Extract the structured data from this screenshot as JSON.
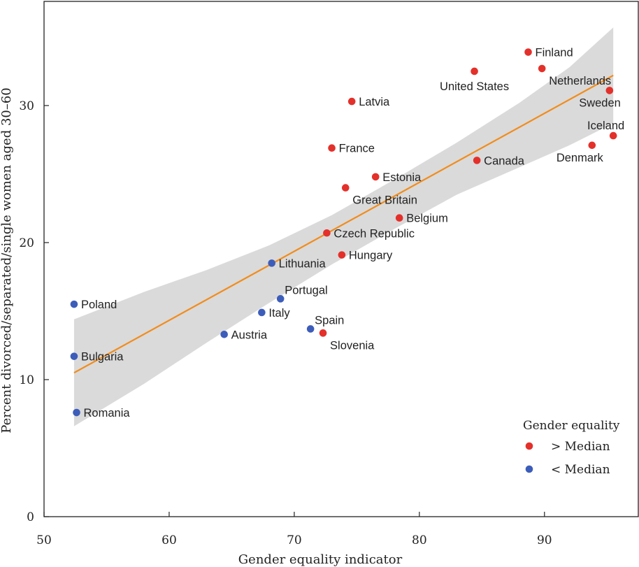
{
  "chart_data": {
    "type": "scatter",
    "title": "",
    "xlabel": "Gender equality indicator",
    "ylabel": "Percent divorced/separated/single women aged 30–60",
    "xlim": [
      50,
      97.5
    ],
    "ylim": [
      0,
      37.6
    ],
    "xticks": [
      50,
      60,
      70,
      80,
      90
    ],
    "yticks": [
      0,
      10,
      20,
      30
    ],
    "grid": false,
    "legend": {
      "title": "Gender equality",
      "placement": "bottom-right",
      "entries": [
        {
          "label": "> Median",
          "color": "#e4302a"
        },
        {
          "label": "< Median",
          "color": "#3d5dba"
        }
      ]
    },
    "fit_line": {
      "color": "#f28c1b",
      "x": [
        52.4,
        95.5
      ],
      "y": [
        10.5,
        32.2
      ]
    },
    "confidence_band": {
      "color": "#dadada",
      "x": [
        52.4,
        58,
        63,
        68,
        73,
        78,
        83,
        88,
        92,
        95.5
      ],
      "upper": [
        14.4,
        16.4,
        18.0,
        19.8,
        22.0,
        24.6,
        27.3,
        30.2,
        32.8,
        35.7
      ],
      "lower": [
        6.6,
        9.7,
        12.7,
        15.6,
        18.4,
        21.0,
        23.5,
        25.5,
        27.1,
        28.7
      ]
    },
    "series": [
      {
        "name": "> Median",
        "color": "#e4302a",
        "points": [
          {
            "label": "Finland",
            "x": 88.7,
            "y": 33.9,
            "pos": "right"
          },
          {
            "label": "Netherlands",
            "x": 89.8,
            "y": 32.7,
            "pos": "below-right"
          },
          {
            "label": "United States",
            "x": 84.4,
            "y": 32.5,
            "pos": "below"
          },
          {
            "label": "Sweden",
            "x": 95.2,
            "y": 31.1,
            "pos": "below-left"
          },
          {
            "label": "Latvia",
            "x": 74.6,
            "y": 30.3,
            "pos": "right"
          },
          {
            "label": "Iceland",
            "x": 95.5,
            "y": 27.8,
            "pos": "above-left"
          },
          {
            "label": "Denmark",
            "x": 93.8,
            "y": 27.1,
            "pos": "below-left"
          },
          {
            "label": "France",
            "x": 73.0,
            "y": 26.9,
            "pos": "right"
          },
          {
            "label": "Canada",
            "x": 84.6,
            "y": 26.0,
            "pos": "right"
          },
          {
            "label": "Estonia",
            "x": 76.5,
            "y": 24.8,
            "pos": "right"
          },
          {
            "label": "Great Britain",
            "x": 74.1,
            "y": 24.0,
            "pos": "below-right"
          },
          {
            "label": "Belgium",
            "x": 78.4,
            "y": 21.8,
            "pos": "right"
          },
          {
            "label": "Czech Republic",
            "x": 72.6,
            "y": 20.7,
            "pos": "right"
          },
          {
            "label": "Hungary",
            "x": 73.8,
            "y": 19.1,
            "pos": "right"
          },
          {
            "label": "Slovenia",
            "x": 72.3,
            "y": 13.4,
            "pos": "below-right"
          }
        ]
      },
      {
        "name": "< Median",
        "color": "#3d5dba",
        "points": [
          {
            "label": "Lithuania",
            "x": 68.2,
            "y": 18.5,
            "pos": "right"
          },
          {
            "label": "Poland",
            "x": 52.4,
            "y": 15.5,
            "pos": "right"
          },
          {
            "label": "Portugal",
            "x": 68.9,
            "y": 15.9,
            "pos": "above-right"
          },
          {
            "label": "Italy",
            "x": 67.4,
            "y": 14.9,
            "pos": "right"
          },
          {
            "label": "Spain",
            "x": 71.3,
            "y": 13.7,
            "pos": "above-right"
          },
          {
            "label": "Austria",
            "x": 64.4,
            "y": 13.3,
            "pos": "right"
          },
          {
            "label": "Bulgaria",
            "x": 52.4,
            "y": 11.7,
            "pos": "right"
          },
          {
            "label": "Romania",
            "x": 52.6,
            "y": 7.6,
            "pos": "right"
          }
        ]
      }
    ]
  }
}
